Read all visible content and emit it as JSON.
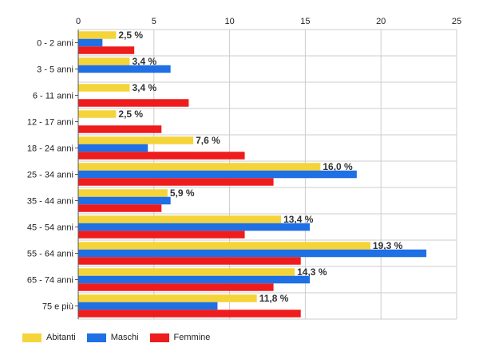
{
  "chart_data": {
    "type": "bar",
    "orientation": "horizontal",
    "categories": [
      "0 - 2 anni",
      "3 - 5 anni",
      "6 - 11 anni",
      "12 - 17 anni",
      "18 - 24 anni",
      "25 - 34 anni",
      "35 - 44 anni",
      "45 - 54 anni",
      "55 - 64 anni",
      "65 - 74 anni",
      "75 e più"
    ],
    "series": [
      {
        "name": "Abitanti",
        "color": "#f5d43a",
        "values": [
          2.5,
          3.4,
          3.4,
          2.5,
          7.6,
          16.0,
          5.9,
          13.4,
          19.3,
          14.3,
          11.8
        ],
        "labels": [
          "2,5 %",
          "3,4 %",
          "3,4 %",
          "2,5 %",
          "7,6 %",
          "16,0 %",
          "5,9 %",
          "13,4 %",
          "19,3 %",
          "14,3 %",
          "11,8 %"
        ]
      },
      {
        "name": "Maschi",
        "color": "#1f6fe5",
        "values": [
          1.6,
          6.1,
          0,
          0,
          4.6,
          18.4,
          6.1,
          15.3,
          23.0,
          15.3,
          9.2
        ]
      },
      {
        "name": "Femmine",
        "color": "#ee1c1c",
        "values": [
          3.7,
          0,
          7.3,
          5.5,
          11.0,
          12.9,
          5.5,
          11.0,
          14.7,
          12.9,
          14.7
        ]
      }
    ],
    "xlim": [
      0,
      25
    ],
    "xticks": [
      0,
      5,
      10,
      15,
      20,
      25
    ],
    "title": "",
    "xlabel": "",
    "ylabel": "",
    "grid": true,
    "legend_position": "bottom-left"
  }
}
